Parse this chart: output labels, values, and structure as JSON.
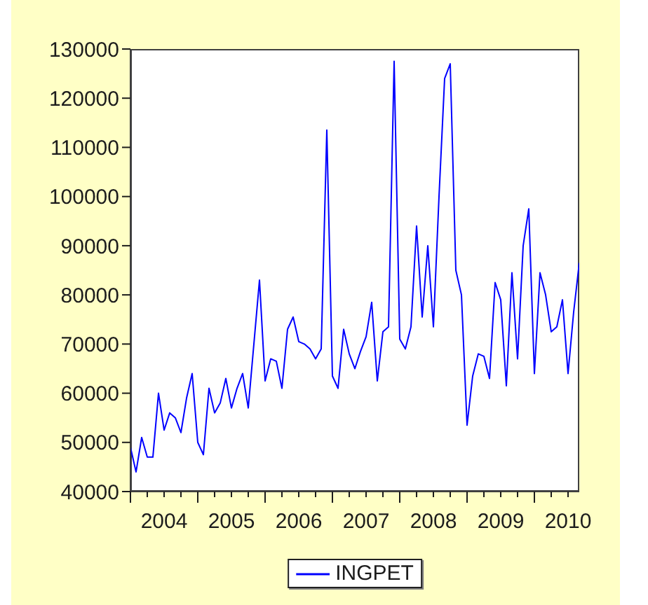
{
  "chart_data": {
    "type": "line",
    "x": [
      "2004-01",
      "2004-02",
      "2004-03",
      "2004-04",
      "2004-05",
      "2004-06",
      "2004-07",
      "2004-08",
      "2004-09",
      "2004-10",
      "2004-11",
      "2004-12",
      "2005-01",
      "2005-02",
      "2005-03",
      "2005-04",
      "2005-05",
      "2005-06",
      "2005-07",
      "2005-08",
      "2005-09",
      "2005-10",
      "2005-11",
      "2005-12",
      "2006-01",
      "2006-02",
      "2006-03",
      "2006-04",
      "2006-05",
      "2006-06",
      "2006-07",
      "2006-08",
      "2006-09",
      "2006-10",
      "2006-11",
      "2006-12",
      "2007-01",
      "2007-02",
      "2007-03",
      "2007-04",
      "2007-05",
      "2007-06",
      "2007-07",
      "2007-08",
      "2007-09",
      "2007-10",
      "2007-11",
      "2007-12",
      "2008-01",
      "2008-02",
      "2008-03",
      "2008-04",
      "2008-05",
      "2008-06",
      "2008-07",
      "2008-08",
      "2008-09",
      "2008-10",
      "2008-11",
      "2008-12",
      "2009-01",
      "2009-02",
      "2009-03",
      "2009-04",
      "2009-05",
      "2009-06",
      "2009-07",
      "2009-08",
      "2009-09",
      "2009-10",
      "2009-11",
      "2009-12",
      "2010-01",
      "2010-02",
      "2010-03",
      "2010-04",
      "2010-05",
      "2010-06",
      "2010-07",
      "2010-08",
      "2010-09"
    ],
    "series": [
      {
        "name": "INGPET",
        "color": "#0000ff",
        "values": [
          49000,
          44000,
          51000,
          47000,
          47000,
          60000,
          52500,
          56000,
          55000,
          52000,
          59000,
          64000,
          50000,
          47500,
          61000,
          56000,
          58000,
          63000,
          57000,
          61000,
          64000,
          57000,
          70000,
          83000,
          62500,
          67000,
          66500,
          61000,
          73000,
          75500,
          70500,
          70000,
          69000,
          67000,
          69000,
          113500,
          63500,
          61000,
          73000,
          68000,
          65000,
          68500,
          71500,
          78500,
          62500,
          72500,
          73500,
          127500,
          71000,
          69000,
          73500,
          94000,
          75500,
          90000,
          73500,
          100000,
          124000,
          127000,
          85000,
          80000,
          53500,
          63500,
          68000,
          67500,
          63000,
          82500,
          79000,
          61500,
          84500,
          67000,
          90000,
          97500,
          64000,
          84500,
          80000,
          72500,
          73500,
          79000,
          64000,
          76500,
          86500
        ]
      }
    ],
    "xlim": [
      "2004-01",
      "2010-09"
    ],
    "xticks": [
      {
        "value": "2004-01",
        "label": null
      },
      {
        "value": "2004-04",
        "label": null
      },
      {
        "value": "2004-07",
        "label": "2004"
      },
      {
        "value": "2004-10",
        "label": null
      },
      {
        "value": "2005-01",
        "label": null
      },
      {
        "value": "2005-04",
        "label": null
      },
      {
        "value": "2005-07",
        "label": "2005"
      },
      {
        "value": "2005-10",
        "label": null
      },
      {
        "value": "2006-01",
        "label": null
      },
      {
        "value": "2006-04",
        "label": null
      },
      {
        "value": "2006-07",
        "label": "2006"
      },
      {
        "value": "2006-10",
        "label": null
      },
      {
        "value": "2007-01",
        "label": null
      },
      {
        "value": "2007-04",
        "label": null
      },
      {
        "value": "2007-07",
        "label": "2007"
      },
      {
        "value": "2007-10",
        "label": null
      },
      {
        "value": "2008-01",
        "label": null
      },
      {
        "value": "2008-04",
        "label": null
      },
      {
        "value": "2008-07",
        "label": "2008"
      },
      {
        "value": "2008-10",
        "label": null
      },
      {
        "value": "2009-01",
        "label": null
      },
      {
        "value": "2009-04",
        "label": null
      },
      {
        "value": "2009-07",
        "label": "2009"
      },
      {
        "value": "2009-10",
        "label": null
      },
      {
        "value": "2010-01",
        "label": null
      },
      {
        "value": "2010-04",
        "label": null
      },
      {
        "value": "2010-07",
        "label": "2010"
      }
    ],
    "ylim": [
      40000,
      130000
    ],
    "yticks": [
      40000,
      50000,
      60000,
      70000,
      80000,
      90000,
      100000,
      110000,
      120000,
      130000
    ],
    "legend": "bottom"
  }
}
